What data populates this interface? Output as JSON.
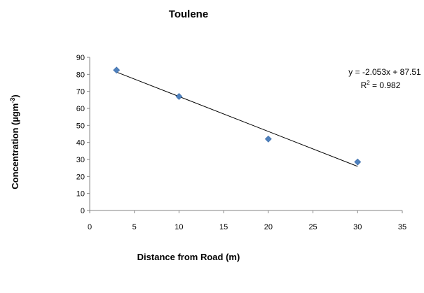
{
  "chart_data": {
    "type": "scatter",
    "title": "Toulene",
    "xlabel": "Distance from Road (m)",
    "ylabel_main": "Concentration (µgm",
    "ylabel_sup": "-3",
    "ylabel_end": ")",
    "xlim": [
      0,
      35
    ],
    "ylim": [
      0,
      90
    ],
    "x_ticks": [
      "0",
      "5",
      "10",
      "15",
      "20",
      "25",
      "30",
      "35"
    ],
    "y_ticks": [
      "0",
      "10",
      "20",
      "30",
      "40",
      "50",
      "60",
      "70",
      "80",
      "90"
    ],
    "grid": false,
    "legend": "none",
    "marker_color": "#4f81bd",
    "series": [
      {
        "marker": "diamond",
        "x": [
          3,
          10,
          20,
          30
        ],
        "y": [
          82.5,
          67,
          42,
          28.5
        ]
      }
    ],
    "trendline": {
      "type": "linear",
      "slope": -2.053,
      "intercept": 87.51,
      "x_range": [
        3,
        30
      ],
      "equation_label": "y = -2.053x + 87.51",
      "r2_main": "R",
      "r2_sup": "2",
      "r2_value": " = 0.982"
    }
  }
}
